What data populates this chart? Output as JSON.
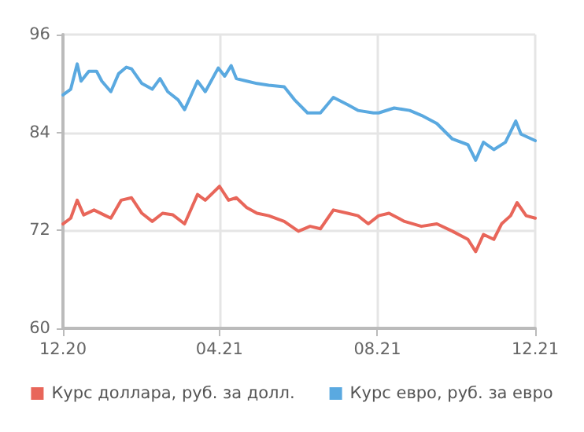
{
  "chart_data": {
    "type": "line",
    "xlim": [
      "2020-12-01",
      "2021-12-01"
    ],
    "xticks": [
      {
        "value": "2020-12-01",
        "label": "12.20"
      },
      {
        "value": "2021-04-01",
        "label": "04.21"
      },
      {
        "value": "2021-08-01",
        "label": "08.21"
      },
      {
        "value": "2021-12-01",
        "label": "12.21"
      }
    ],
    "ylim": [
      60,
      96
    ],
    "yticks": [
      60,
      72,
      84,
      96
    ],
    "grid": true,
    "legend": "bottom",
    "marker": "none",
    "line_style": "solid",
    "series": [
      {
        "name": "Курс доллара, руб. за долл.",
        "color": "#e8665a",
        "x": [
          "2020-12-01",
          "2020-12-07",
          "2020-12-12",
          "2020-12-17",
          "2020-12-25",
          "2021-01-03",
          "2021-01-07",
          "2021-01-15",
          "2021-01-23",
          "2021-01-31",
          "2021-02-08",
          "2021-02-16",
          "2021-02-24",
          "2021-03-05",
          "2021-03-15",
          "2021-03-21",
          "2021-04-01",
          "2021-04-08",
          "2021-04-14",
          "2021-04-22",
          "2021-04-30",
          "2021-05-09",
          "2021-05-21",
          "2021-06-01",
          "2021-06-10",
          "2021-06-18",
          "2021-06-28",
          "2021-07-09",
          "2021-07-17",
          "2021-07-25",
          "2021-08-02",
          "2021-08-10",
          "2021-08-22",
          "2021-09-04",
          "2021-09-16",
          "2021-09-28",
          "2021-10-10",
          "2021-10-16",
          "2021-10-22",
          "2021-10-30",
          "2021-11-05",
          "2021-11-12",
          "2021-11-17",
          "2021-11-24",
          "2021-12-01"
        ],
        "values": [
          72.8,
          73.5,
          75.7,
          73.9,
          74.5,
          73.8,
          73.5,
          75.7,
          76.0,
          74.1,
          73.1,
          74.1,
          73.9,
          72.8,
          76.4,
          75.7,
          77.4,
          75.7,
          76.0,
          74.8,
          74.1,
          73.8,
          73.1,
          71.9,
          72.5,
          72.2,
          74.5,
          74.1,
          73.8,
          72.8,
          73.8,
          74.1,
          73.1,
          72.5,
          72.8,
          71.9,
          70.9,
          69.4,
          71.5,
          70.9,
          72.8,
          73.8,
          75.4,
          73.8,
          73.5
        ]
      },
      {
        "name": "Курс евро, руб. за евро",
        "color": "#5aa9e0",
        "x": [
          "2020-12-01",
          "2020-12-07",
          "2020-12-12",
          "2020-12-15",
          "2020-12-21",
          "2020-12-27",
          "2020-12-31",
          "2021-01-07",
          "2021-01-13",
          "2021-01-19",
          "2021-01-23",
          "2021-01-31",
          "2021-02-08",
          "2021-02-14",
          "2021-02-20",
          "2021-02-28",
          "2021-03-05",
          "2021-03-15",
          "2021-03-21",
          "2021-03-31",
          "2021-04-05",
          "2021-04-10",
          "2021-04-14",
          "2021-04-22",
          "2021-04-30",
          "2021-05-09",
          "2021-05-21",
          "2021-05-29",
          "2021-06-08",
          "2021-06-18",
          "2021-06-28",
          "2021-07-09",
          "2021-07-17",
          "2021-07-29",
          "2021-08-02",
          "2021-08-14",
          "2021-08-26",
          "2021-09-04",
          "2021-09-16",
          "2021-09-28",
          "2021-10-10",
          "2021-10-16",
          "2021-10-22",
          "2021-10-30",
          "2021-11-08",
          "2021-11-16",
          "2021-11-20",
          "2021-12-01"
        ],
        "values": [
          88.6,
          89.3,
          92.4,
          90.3,
          91.5,
          91.5,
          90.3,
          89.0,
          91.2,
          92.0,
          91.8,
          90.0,
          89.3,
          90.6,
          89.0,
          88.0,
          86.8,
          90.3,
          89.0,
          91.9,
          90.9,
          92.2,
          90.6,
          90.3,
          90.0,
          89.8,
          89.6,
          88.0,
          86.4,
          86.4,
          88.3,
          87.4,
          86.7,
          86.4,
          86.4,
          87.0,
          86.7,
          86.1,
          85.1,
          83.2,
          82.5,
          80.6,
          82.8,
          81.9,
          82.8,
          85.4,
          83.8,
          83.0
        ]
      }
    ]
  }
}
